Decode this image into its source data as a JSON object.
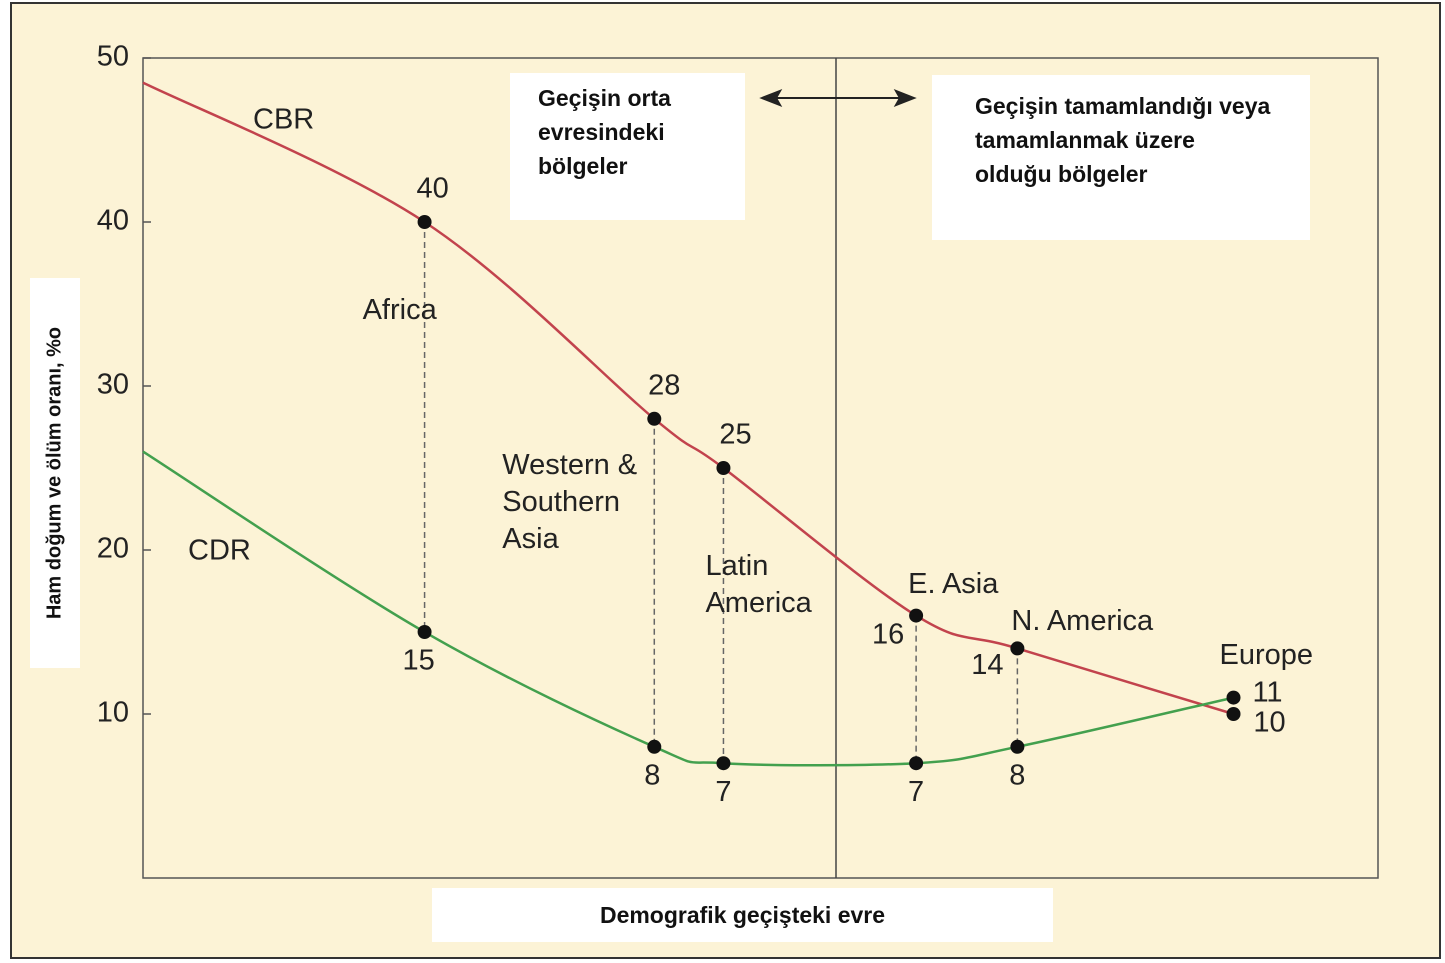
{
  "chart_data": {
    "type": "line",
    "y_label": "Ham doğum ve ölüm oranı, %o",
    "x_label": "Demografik geçişteki evre",
    "annotations": [
      "Geçişin orta evresindeki bölgeler",
      "Geçişin tamamlandığı veya tamamlanmak üzere olduğu bölgeler"
    ],
    "categories": [
      null,
      "Africa",
      "Western & Southern Asia",
      "Latin America",
      "E. Asia",
      "N. America",
      "Europe"
    ],
    "x": [
      0,
      22.8,
      41.4,
      47,
      62.6,
      70.8,
      88.3
    ],
    "xlim": [
      0,
      100
    ],
    "ylim": [
      0,
      50
    ],
    "yticks": [
      10,
      20,
      30,
      40,
      50
    ],
    "series": [
      {
        "name": "CBR",
        "color": "#c2434d",
        "values": [
          48.5,
          40,
          28,
          25,
          16,
          14,
          10
        ],
        "value_labels": [
          null,
          "40",
          "28",
          "25",
          "16",
          "14",
          "10"
        ]
      },
      {
        "name": "CDR",
        "color": "#43a04e",
        "values": [
          26,
          15,
          8,
          7,
          7,
          8,
          11
        ],
        "value_labels": [
          null,
          "15",
          "8",
          "7",
          "7",
          "8",
          "11"
        ]
      }
    ]
  }
}
